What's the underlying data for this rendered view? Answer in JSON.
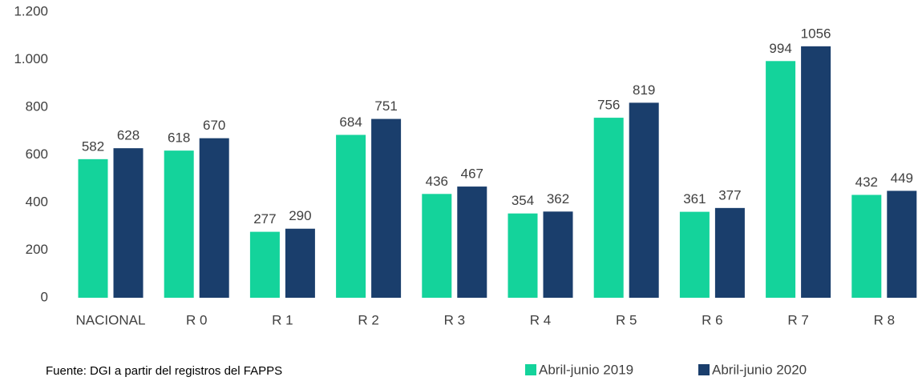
{
  "chart_data": {
    "type": "bar",
    "categories": [
      "NACIONAL",
      "R 0",
      "R 1",
      "R 2",
      "R 3",
      "R 4",
      "R 5",
      "R 6",
      "R 7",
      "R 8"
    ],
    "series": [
      {
        "name": "Abril-junio 2019",
        "color": "#14d39b",
        "values": [
          582,
          618,
          277,
          684,
          436,
          354,
          756,
          361,
          994,
          432
        ]
      },
      {
        "name": "Abril-junio 2020",
        "color": "#1a3e6c",
        "values": [
          628,
          670,
          290,
          751,
          467,
          362,
          819,
          377,
          1056,
          449
        ]
      }
    ],
    "ylim": [
      0,
      1200
    ],
    "yticks": [
      0,
      200,
      400,
      600,
      800,
      {
        "value": 1000,
        "label": "1.000"
      },
      {
        "value": 1200,
        "label": "1.200"
      }
    ],
    "grid": false,
    "legend": "bottom-right",
    "source": "Fuente: DGI a partir del registros  del FAPPS"
  }
}
